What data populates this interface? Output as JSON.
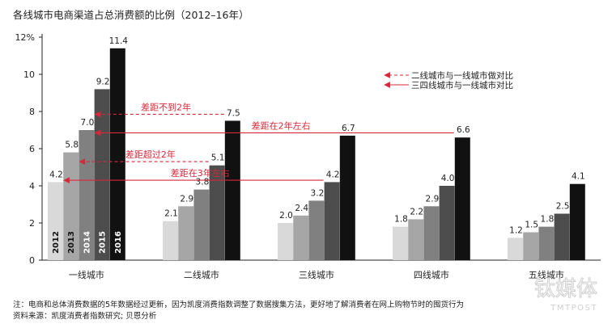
{
  "title": "各线城市电商渠道占总消费额的比例（2012–16年）",
  "notes": [
    "注：电商和总体消费数据的5年数据经过更新，因为凯度消费指数调整了数据搜集方法，更好地了解消费者在网上购物节时的囤货行为",
    "资料来源：凯度消费者指数研究; 贝恩分析"
  ],
  "watermark": {
    "line1": "钛媒体",
    "line2": "TMTPOST"
  },
  "chart_data": {
    "type": "bar",
    "categories": [
      "一线城市",
      "二线城市",
      "三线城市",
      "四线城市",
      "五线城市"
    ],
    "series": [
      {
        "name": "2012",
        "values": [
          4.2,
          2.1,
          2.0,
          1.8,
          1.2
        ]
      },
      {
        "name": "2013",
        "values": [
          5.8,
          2.9,
          2.4,
          2.2,
          1.5
        ]
      },
      {
        "name": "2014",
        "values": [
          7.0,
          3.8,
          3.2,
          2.9,
          1.8
        ]
      },
      {
        "name": "2015",
        "values": [
          9.2,
          5.1,
          4.2,
          4.0,
          2.5
        ]
      },
      {
        "name": "2016",
        "values": [
          11.4,
          7.5,
          6.7,
          6.6,
          4.1
        ]
      }
    ],
    "value_labels": [
      [
        "4.2",
        "5.8",
        "7.0",
        "9.2",
        "11.4"
      ],
      [
        "2.1",
        "2.9",
        "3.8",
        "5.1",
        "7.5"
      ],
      [
        "2.0",
        "2.4",
        "3.2",
        "4.2",
        "6.7"
      ],
      [
        "1.8",
        "2.2",
        "2.9",
        "4.0",
        "6.6"
      ],
      [
        "1.2",
        "1.5",
        "1.8",
        "2.5",
        "4.1"
      ]
    ],
    "series_colors": [
      "#d9d9d9",
      "#a6a6a6",
      "#808080",
      "#4d4d4d",
      "#111111"
    ],
    "label_colors": [
      "#111111",
      "#111111",
      "#ffffff",
      "#ffffff",
      "#ffffff"
    ],
    "ylim": [
      0,
      12
    ],
    "yticks": [
      0,
      2,
      4,
      6,
      8,
      10,
      12
    ],
    "ytick_labels": [
      "0",
      "2",
      "4",
      "6",
      "8",
      "10",
      "12%"
    ],
    "accent_color": "#d6283a",
    "legend": [
      {
        "label": "二线城市与一线城市做对比",
        "style": "dashed"
      },
      {
        "label": "三四线城市与一线城市对比",
        "style": "solid"
      }
    ],
    "legend_position": "top-right",
    "annotations": [
      {
        "text": "差距不到2年",
        "style": "dashed",
        "y": 7.85,
        "from_category": 1,
        "from_series": 4,
        "to_category": 0,
        "to_series": 2
      },
      {
        "text": "差距在2年左右",
        "style": "solid",
        "y": 6.85,
        "from_category": 3,
        "from_series": 4,
        "to_category": 0,
        "to_series": 2
      },
      {
        "text": "差距超过2年",
        "style": "dashed",
        "y": 5.3,
        "from_category": 1,
        "from_series": 3,
        "to_category": 0,
        "to_series": 1
      },
      {
        "text": "差距在3年左右",
        "style": "solid",
        "y": 4.3,
        "from_category": 2,
        "from_series": 3,
        "to_category": 0,
        "to_series": 0
      }
    ],
    "grid": false
  }
}
